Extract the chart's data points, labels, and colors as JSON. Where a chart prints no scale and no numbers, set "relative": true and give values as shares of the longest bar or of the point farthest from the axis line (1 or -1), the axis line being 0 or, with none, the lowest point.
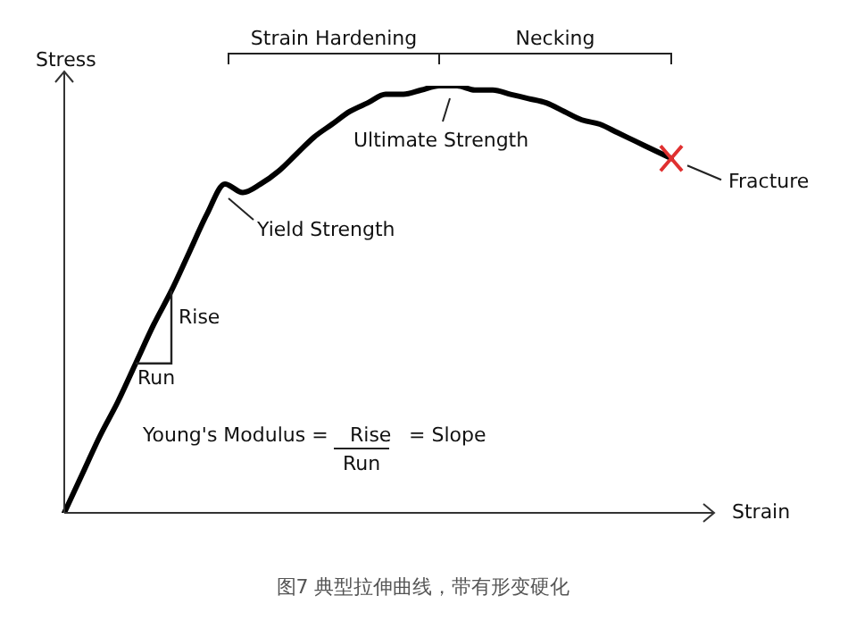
{
  "chart_data": {
    "type": "line",
    "relative": true,
    "xlabel": "Strain",
    "ylabel": "Stress",
    "legend": false,
    "categories": [
      null,
      null,
      null,
      null,
      null,
      null,
      null,
      null,
      null,
      null,
      null,
      null,
      null,
      null,
      null,
      null,
      null,
      null,
      null,
      null,
      null,
      null,
      null,
      null,
      null,
      null,
      null,
      null,
      null,
      null,
      null,
      null,
      null,
      null,
      null
    ],
    "color": "#000000",
    "values": [
      0,
      0.09,
      0.18,
      0.26,
      0.35,
      0.44,
      0.52,
      0.61,
      0.7,
      0.77,
      0.75,
      0.77,
      0.8,
      0.84,
      0.88,
      0.91,
      0.94,
      0.96,
      0.98,
      0.98,
      0.99,
      1,
      1,
      0.99,
      0.99,
      0.98,
      0.97,
      0.96,
      0.94,
      0.92,
      0.91,
      0.89,
      0.87,
      0.85,
      0.83
    ],
    "annotations": [
      "Strain Hardening",
      "Necking",
      "Ultimate Strength",
      "Yield Strength",
      "Fracture",
      "Rise",
      "Run",
      "Young's Modulus =",
      "Rise",
      "= Slope",
      "Run",
      "图7 典型拉伸曲线，带有形变硬化"
    ]
  }
}
